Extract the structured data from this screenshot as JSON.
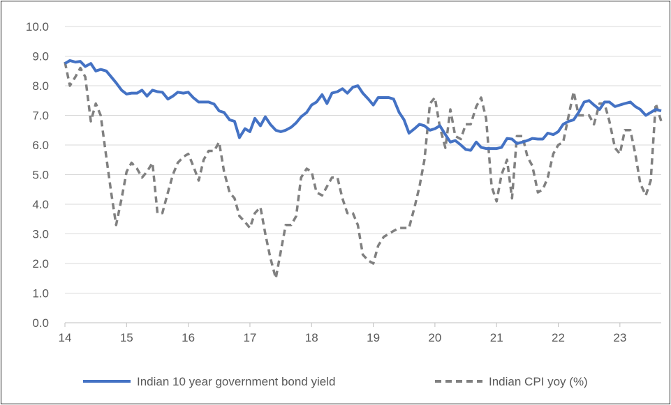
{
  "chart_data": {
    "type": "line",
    "title": "",
    "xlabel": "",
    "ylabel": "",
    "xlim": [
      14,
      23.67
    ],
    "ylim": [
      0,
      10
    ],
    "x_ticks": [
      "14",
      "15",
      "16",
      "17",
      "18",
      "19",
      "20",
      "21",
      "22",
      "23"
    ],
    "y_ticks": [
      "0.0",
      "1.0",
      "2.0",
      "3.0",
      "4.0",
      "5.0",
      "6.0",
      "7.0",
      "8.0",
      "9.0",
      "10.0"
    ],
    "grid": "horizontal",
    "legend_position": "bottom",
    "series": [
      {
        "name": "Indian 10 year government bond yield",
        "color": "#4472C4",
        "style": "solid",
        "x": [
          14.0,
          14.08,
          14.17,
          14.25,
          14.33,
          14.42,
          14.5,
          14.58,
          14.67,
          14.75,
          14.83,
          14.92,
          15.0,
          15.08,
          15.17,
          15.25,
          15.33,
          15.42,
          15.5,
          15.58,
          15.67,
          15.75,
          15.83,
          15.92,
          16.0,
          16.08,
          16.17,
          16.25,
          16.33,
          16.42,
          16.5,
          16.58,
          16.67,
          16.75,
          16.83,
          16.92,
          17.0,
          17.08,
          17.17,
          17.25,
          17.33,
          17.42,
          17.5,
          17.58,
          17.67,
          17.75,
          17.83,
          17.92,
          18.0,
          18.08,
          18.17,
          18.25,
          18.33,
          18.42,
          18.5,
          18.58,
          18.67,
          18.75,
          18.83,
          18.92,
          19.0,
          19.08,
          19.17,
          19.25,
          19.33,
          19.42,
          19.5,
          19.58,
          19.67,
          19.75,
          19.83,
          19.92,
          20.0,
          20.08,
          20.17,
          20.25,
          20.33,
          20.42,
          20.5,
          20.58,
          20.67,
          20.75,
          20.83,
          20.92,
          21.0,
          21.08,
          21.17,
          21.25,
          21.33,
          21.42,
          21.5,
          21.58,
          21.67,
          21.75,
          21.83,
          21.92,
          22.0,
          22.08,
          22.17,
          22.25,
          22.33,
          22.42,
          22.5,
          22.58,
          22.67,
          22.75,
          22.83,
          22.92,
          23.0,
          23.08,
          23.17,
          23.25,
          23.33,
          23.42,
          23.5,
          23.58,
          23.67
        ],
        "values": [
          8.75,
          8.85,
          8.8,
          8.82,
          8.65,
          8.75,
          8.5,
          8.55,
          8.5,
          8.3,
          8.1,
          7.85,
          7.72,
          7.75,
          7.75,
          7.85,
          7.65,
          7.85,
          7.8,
          7.78,
          7.55,
          7.65,
          7.78,
          7.75,
          7.78,
          7.6,
          7.45,
          7.45,
          7.45,
          7.38,
          7.15,
          7.1,
          6.85,
          6.8,
          6.25,
          6.55,
          6.45,
          6.9,
          6.65,
          6.95,
          6.7,
          6.5,
          6.45,
          6.5,
          6.6,
          6.75,
          6.95,
          7.1,
          7.35,
          7.45,
          7.7,
          7.4,
          7.75,
          7.8,
          7.9,
          7.75,
          7.95,
          8.0,
          7.75,
          7.55,
          7.35,
          7.6,
          7.6,
          7.6,
          7.55,
          7.1,
          6.85,
          6.4,
          6.55,
          6.7,
          6.65,
          6.5,
          6.55,
          6.65,
          6.35,
          6.1,
          6.15,
          6.0,
          5.85,
          5.82,
          6.1,
          5.92,
          5.88,
          5.88,
          5.88,
          5.92,
          6.22,
          6.2,
          6.05,
          6.1,
          6.15,
          6.22,
          6.2,
          6.2,
          6.4,
          6.35,
          6.45,
          6.7,
          6.8,
          6.85,
          7.1,
          7.45,
          7.5,
          7.35,
          7.2,
          7.45,
          7.45,
          7.3,
          7.35,
          7.4,
          7.45,
          7.3,
          7.2,
          7.0,
          7.1,
          7.2,
          7.15
        ]
      },
      {
        "name": "Indian CPI yoy (%)",
        "color": "#808080",
        "style": "dashed",
        "x": [
          14.0,
          14.08,
          14.17,
          14.25,
          14.33,
          14.42,
          14.5,
          14.58,
          14.67,
          14.75,
          14.83,
          14.92,
          15.0,
          15.08,
          15.17,
          15.25,
          15.33,
          15.42,
          15.5,
          15.58,
          15.67,
          15.75,
          15.83,
          15.92,
          16.0,
          16.08,
          16.17,
          16.25,
          16.33,
          16.42,
          16.5,
          16.58,
          16.67,
          16.75,
          16.83,
          16.92,
          17.0,
          17.08,
          17.17,
          17.25,
          17.33,
          17.42,
          17.5,
          17.58,
          17.67,
          17.75,
          17.83,
          17.92,
          18.0,
          18.08,
          18.17,
          18.25,
          18.33,
          18.42,
          18.5,
          18.58,
          18.67,
          18.75,
          18.83,
          18.92,
          19.0,
          19.08,
          19.17,
          19.25,
          19.33,
          19.42,
          19.5,
          19.58,
          19.67,
          19.75,
          19.83,
          19.92,
          20.0,
          20.08,
          20.17,
          20.25,
          20.33,
          20.42,
          20.5,
          20.58,
          20.67,
          20.75,
          20.83,
          20.92,
          21.0,
          21.08,
          21.17,
          21.25,
          21.33,
          21.42,
          21.5,
          21.58,
          21.67,
          21.75,
          21.83,
          21.92,
          22.0,
          22.08,
          22.17,
          22.25,
          22.33,
          22.42,
          22.5,
          22.58,
          22.67,
          22.75,
          22.83,
          22.92,
          23.0,
          23.08,
          23.17,
          23.25,
          23.33,
          23.42,
          23.5,
          23.58,
          23.67
        ],
        "values": [
          8.8,
          8.0,
          8.3,
          8.6,
          8.3,
          6.8,
          7.4,
          7.0,
          5.6,
          4.4,
          3.3,
          4.2,
          5.1,
          5.4,
          5.2,
          4.9,
          5.1,
          5.4,
          3.7,
          3.7,
          4.4,
          5.0,
          5.4,
          5.6,
          5.7,
          5.3,
          4.8,
          5.5,
          5.8,
          5.8,
          6.1,
          5.1,
          4.4,
          4.2,
          3.6,
          3.4,
          3.2,
          3.7,
          3.9,
          3.0,
          2.2,
          1.5,
          2.4,
          3.3,
          3.3,
          3.6,
          4.9,
          5.2,
          5.1,
          4.4,
          4.3,
          4.6,
          4.9,
          4.9,
          4.2,
          3.7,
          3.7,
          3.3,
          2.3,
          2.1,
          2.0,
          2.6,
          2.9,
          3.0,
          3.1,
          3.2,
          3.2,
          3.2,
          3.9,
          4.6,
          5.5,
          7.4,
          7.6,
          6.6,
          5.9,
          7.2,
          6.3,
          6.2,
          6.7,
          6.7,
          7.3,
          7.6,
          6.9,
          4.6,
          4.1,
          5.0,
          5.5,
          4.2,
          6.3,
          6.3,
          5.6,
          5.3,
          4.4,
          4.5,
          4.9,
          5.7,
          6.0,
          6.1,
          7.0,
          7.8,
          7.0,
          7.0,
          7.0,
          6.7,
          7.4,
          7.4,
          6.8,
          5.9,
          5.7,
          6.5,
          6.5,
          5.7,
          4.7,
          4.3,
          4.8,
          7.4,
          6.8
        ]
      }
    ]
  }
}
